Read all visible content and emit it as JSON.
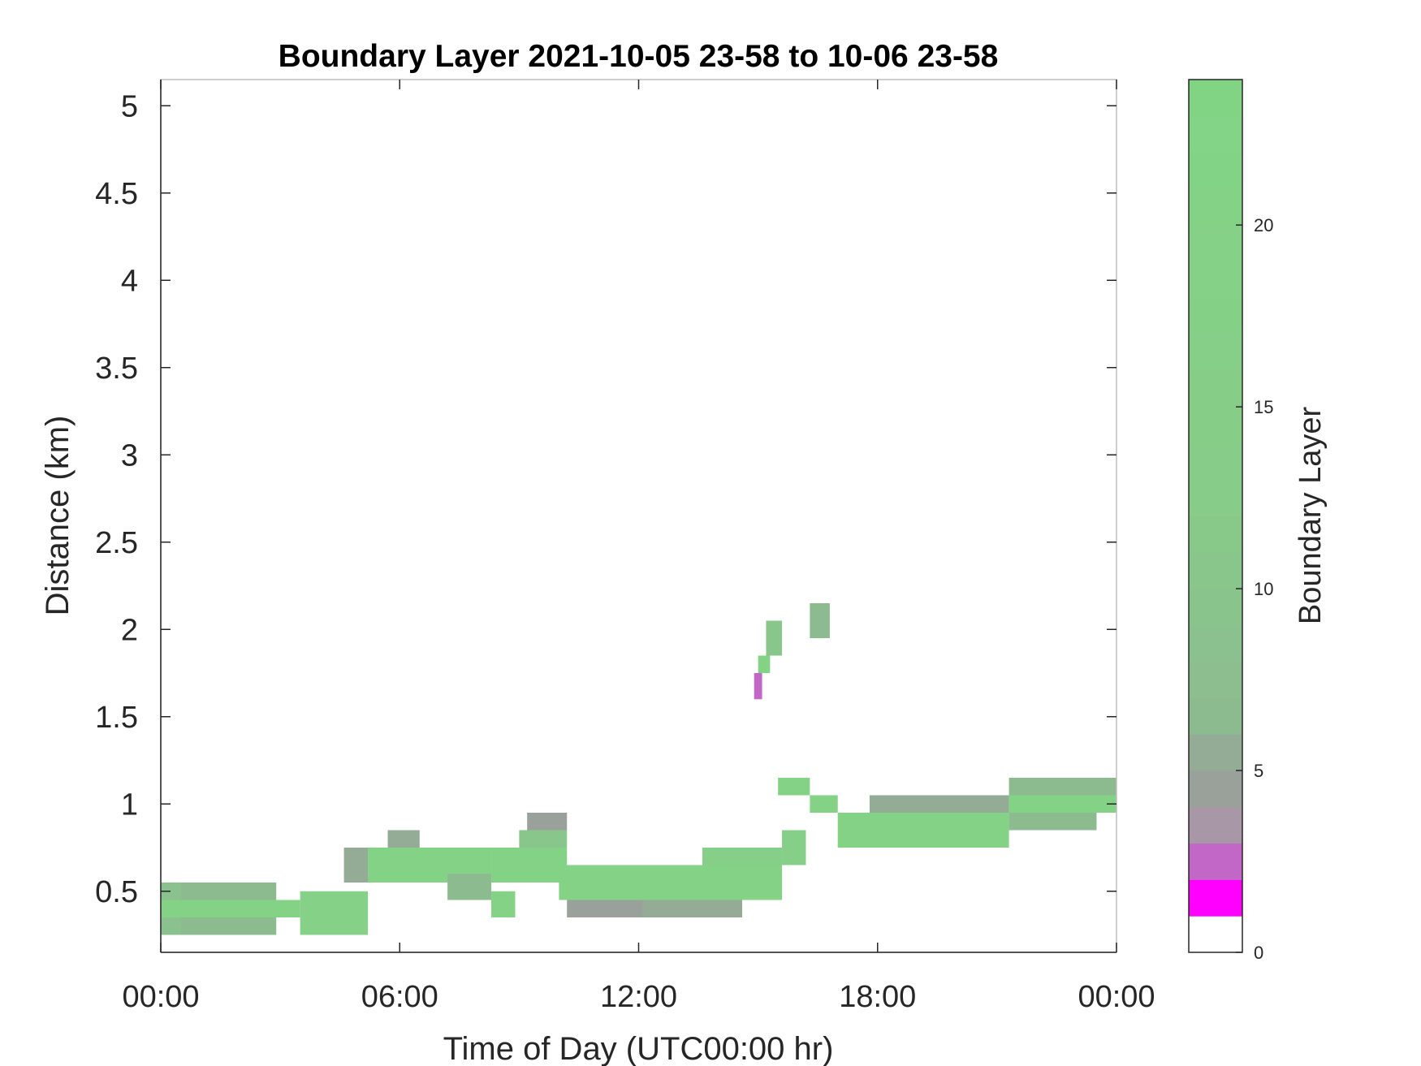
{
  "chart_data": {
    "type": "heatmap",
    "title": "Boundary Layer 2021-10-05 23-58 to 10-06 23-58",
    "xlabel": "Time of Day (UTC00:00 hr)",
    "ylabel": "Distance (km)",
    "x_ticks": [
      "00:00",
      "06:00",
      "12:00",
      "18:00",
      "00:00"
    ],
    "x_tick_hours": [
      0,
      6,
      12,
      18,
      24
    ],
    "xlim_hours": [
      0,
      24
    ],
    "y_ticks": [
      0.5,
      1,
      1.5,
      2,
      2.5,
      3,
      3.5,
      4,
      4.5,
      5
    ],
    "y_tick_labels": [
      "0.5",
      "1",
      "1.5",
      "2",
      "2.5",
      "3",
      "3.5",
      "4",
      "4.5",
      "5"
    ],
    "ylim_km": [
      0.15,
      5.15
    ],
    "grid": false,
    "colorbar": {
      "label": "Boundary Layer",
      "range": [
        0,
        24
      ],
      "ticks": [
        0,
        5,
        10,
        15,
        20
      ],
      "tick_labels": [
        "0",
        "5",
        "10",
        "15",
        "20"
      ],
      "color_stops": [
        {
          "value": 0,
          "color": "#ffffff"
        },
        {
          "value": 1,
          "color": "#ff00ff"
        },
        {
          "value": 2,
          "color": "#c266c7"
        },
        {
          "value": 3,
          "color": "#a897a6"
        },
        {
          "value": 4,
          "color": "#9aa09a"
        },
        {
          "value": 5,
          "color": "#94ab96"
        },
        {
          "value": 6,
          "color": "#8dbb90"
        },
        {
          "value": 12,
          "color": "#87cc89"
        },
        {
          "value": 24,
          "color": "#82d585"
        }
      ]
    },
    "layer_segments": [
      {
        "t_start": 0.0,
        "t_end": 0.5,
        "h_low": 0.25,
        "h_high": 0.55,
        "value": 8
      },
      {
        "t_start": 0.5,
        "t_end": 2.9,
        "h_low": 0.25,
        "h_high": 0.55,
        "value": 6
      },
      {
        "t_start": 0.0,
        "t_end": 3.5,
        "h_low": 0.35,
        "h_high": 0.45,
        "value": 20
      },
      {
        "t_start": 3.5,
        "t_end": 5.2,
        "h_low": 0.25,
        "h_high": 0.5,
        "value": 18
      },
      {
        "t_start": 4.6,
        "t_end": 5.2,
        "h_low": 0.55,
        "h_high": 0.75,
        "value": 5
      },
      {
        "t_start": 5.2,
        "t_end": 8.3,
        "h_low": 0.55,
        "h_high": 0.75,
        "value": 20
      },
      {
        "t_start": 5.7,
        "t_end": 6.5,
        "h_low": 0.75,
        "h_high": 0.85,
        "value": 5
      },
      {
        "t_start": 7.2,
        "t_end": 8.3,
        "h_low": 0.45,
        "h_high": 0.6,
        "value": 6
      },
      {
        "t_start": 8.3,
        "t_end": 8.9,
        "h_low": 0.35,
        "h_high": 0.5,
        "value": 20
      },
      {
        "t_start": 8.3,
        "t_end": 10.2,
        "h_low": 0.55,
        "h_high": 0.75,
        "value": 20
      },
      {
        "t_start": 9.0,
        "t_end": 10.2,
        "h_low": 0.75,
        "h_high": 0.85,
        "value": 10
      },
      {
        "t_start": 9.2,
        "t_end": 10.2,
        "h_low": 0.85,
        "h_high": 0.95,
        "value": 4
      },
      {
        "t_start": 10.0,
        "t_end": 12.2,
        "h_low": 0.45,
        "h_high": 0.65,
        "value": 20
      },
      {
        "t_start": 10.2,
        "t_end": 12.2,
        "h_low": 0.35,
        "h_high": 0.45,
        "value": 4
      },
      {
        "t_start": 12.1,
        "t_end": 15.6,
        "h_low": 0.45,
        "h_high": 0.65,
        "value": 20
      },
      {
        "t_start": 12.1,
        "t_end": 14.6,
        "h_low": 0.35,
        "h_high": 0.45,
        "value": 5
      },
      {
        "t_start": 13.6,
        "t_end": 15.6,
        "h_low": 0.65,
        "h_high": 0.75,
        "value": 16
      },
      {
        "t_start": 15.6,
        "t_end": 16.2,
        "h_low": 0.65,
        "h_high": 0.85,
        "value": 16
      },
      {
        "t_start": 15.2,
        "t_end": 15.6,
        "h_low": 1.85,
        "h_high": 2.05,
        "value": 10
      },
      {
        "t_start": 15.0,
        "t_end": 15.3,
        "h_low": 1.75,
        "h_high": 1.85,
        "value": 20
      },
      {
        "t_start": 14.9,
        "t_end": 15.1,
        "h_low": 1.6,
        "h_high": 1.75,
        "value": 2
      },
      {
        "t_start": 16.3,
        "t_end": 16.8,
        "h_low": 1.95,
        "h_high": 2.15,
        "value": 6
      },
      {
        "t_start": 15.5,
        "t_end": 16.3,
        "h_low": 1.05,
        "h_high": 1.15,
        "value": 20
      },
      {
        "t_start": 16.3,
        "t_end": 17.0,
        "h_low": 0.95,
        "h_high": 1.05,
        "value": 20
      },
      {
        "t_start": 17.0,
        "t_end": 21.3,
        "h_low": 0.75,
        "h_high": 0.95,
        "value": 20
      },
      {
        "t_start": 17.8,
        "t_end": 21.3,
        "h_low": 0.95,
        "h_high": 1.05,
        "value": 5
      },
      {
        "t_start": 21.3,
        "t_end": 24.0,
        "h_low": 0.95,
        "h_high": 1.05,
        "value": 20
      },
      {
        "t_start": 21.3,
        "t_end": 24.0,
        "h_low": 1.05,
        "h_high": 1.15,
        "value": 6
      },
      {
        "t_start": 21.3,
        "t_end": 23.5,
        "h_low": 0.85,
        "h_high": 0.95,
        "value": 6
      }
    ]
  }
}
